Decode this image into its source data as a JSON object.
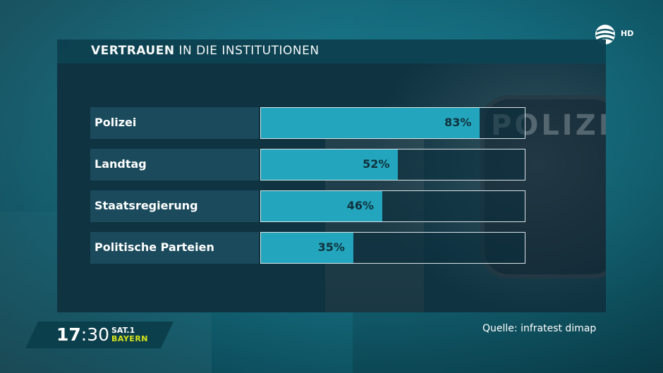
{
  "header": {
    "title_bold": "VERTRAUEN",
    "title_rest": "IN DIE INSTITUTIONEN"
  },
  "broadcaster": {
    "hd_label": "HD"
  },
  "footer": {
    "source": "Quelle: infratest dimap",
    "time_hour": "17",
    "time_min": ":30",
    "channel": "SAT.1",
    "region": "BAYERN"
  },
  "photo": {
    "badge_text": "POLIZEI"
  },
  "colors": {
    "bar": "#23a6bd",
    "label_bg": "#1a4a5c",
    "panel_bg": "#0f3341",
    "region_text": "#d6e41a"
  },
  "chart_data": {
    "type": "bar",
    "orientation": "horizontal",
    "title": "VERTRAUEN IN DIE INSTITUTIONEN",
    "categories": [
      "Polizei",
      "Landtag",
      "Staatsregierung",
      "Politische Parteien"
    ],
    "values": [
      83,
      52,
      46,
      35
    ],
    "value_labels": [
      "83%",
      "52%",
      "46%",
      "35%"
    ],
    "unit": "%",
    "xlim": [
      0,
      100
    ]
  }
}
